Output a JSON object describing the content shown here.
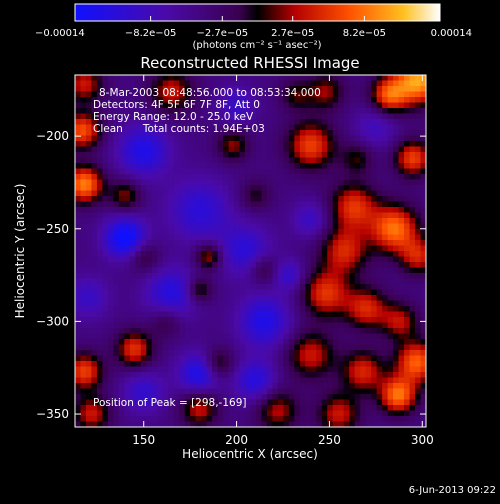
{
  "chart_data": {
    "type": "heatmap",
    "title": "Reconstructed RHESSI Image",
    "xlabel": "Heliocentric X (arcsec)",
    "ylabel": "Heliocentric Y (arcsec)",
    "xlim": [
      113,
      302
    ],
    "ylim": [
      -357,
      -167
    ],
    "x_ticks": [
      150,
      200,
      250,
      300
    ],
    "y_ticks": [
      -350,
      -300,
      -250,
      -200
    ],
    "x_tick_labels": [
      "150",
      "200",
      "250",
      "300"
    ],
    "y_tick_labels": [
      "−350",
      "−300",
      "−250",
      "−200"
    ],
    "colorbar": {
      "range": [
        -0.00014,
        0.00014
      ],
      "tick_values": [
        -0.00014,
        -8.2e-05,
        -2.7e-05,
        2.7e-05,
        8.2e-05,
        0.00014
      ],
      "tick_labels": [
        "−0.00014",
        "−8.2e−05",
        "−2.7e−05",
        "2.7e−05",
        "8.2e−05",
        "0.00014"
      ],
      "unit_label": "(photons cm⁻² s⁻¹ asec⁻²)"
    },
    "annotations": {
      "time_range": "8-Mar-2003 08:48:56.000 to 08:53:34.000",
      "detectors": "Detectors: 4F 5F 6F 7F 8F, Att 0",
      "energy_range": "Energy Range: 12.0 - 25.0 keV",
      "clean": "Clean      Total counts: 1.94E+03",
      "peak": "Position of Peak = [298,-169]"
    },
    "peak": {
      "x": 298,
      "y": -169
    },
    "blobs": [
      {
        "x": 298,
        "y": -170,
        "a": 1.0,
        "s": 9
      },
      {
        "x": 282,
        "y": -178,
        "a": 0.75,
        "s": 7
      },
      {
        "x": 248,
        "y": -176,
        "a": 0.45,
        "s": 7
      },
      {
        "x": 232,
        "y": -178,
        "a": 0.35,
        "s": 6
      },
      {
        "x": 165,
        "y": -176,
        "a": 0.55,
        "s": 8
      },
      {
        "x": 118,
        "y": -172,
        "a": 0.55,
        "s": 7
      },
      {
        "x": 117,
        "y": -197,
        "a": 0.75,
        "s": 7
      },
      {
        "x": 118,
        "y": -226,
        "a": 0.9,
        "s": 7
      },
      {
        "x": 140,
        "y": -232,
        "a": 0.45,
        "s": 6
      },
      {
        "x": 198,
        "y": -205,
        "a": 0.45,
        "s": 6
      },
      {
        "x": 210,
        "y": -232,
        "a": 0.3,
        "s": 6
      },
      {
        "x": 240,
        "y": -205,
        "a": 0.7,
        "s": 9
      },
      {
        "x": 265,
        "y": -212,
        "a": 0.35,
        "s": 6
      },
      {
        "x": 295,
        "y": -212,
        "a": 0.7,
        "s": 7
      },
      {
        "x": 263,
        "y": -238,
        "a": 0.65,
        "s": 9
      },
      {
        "x": 285,
        "y": -250,
        "a": 0.85,
        "s": 9
      },
      {
        "x": 298,
        "y": -265,
        "a": 0.55,
        "s": 7
      },
      {
        "x": 258,
        "y": -262,
        "a": 0.6,
        "s": 9
      },
      {
        "x": 248,
        "y": -285,
        "a": 0.65,
        "s": 9
      },
      {
        "x": 270,
        "y": -293,
        "a": 0.6,
        "s": 8
      },
      {
        "x": 288,
        "y": -300,
        "a": 0.5,
        "s": 7
      },
      {
        "x": 297,
        "y": -322,
        "a": 0.8,
        "s": 8
      },
      {
        "x": 240,
        "y": -318,
        "a": 0.55,
        "s": 9
      },
      {
        "x": 268,
        "y": -327,
        "a": 0.6,
        "s": 8
      },
      {
        "x": 287,
        "y": -340,
        "a": 0.85,
        "s": 7
      },
      {
        "x": 255,
        "y": -350,
        "a": 0.55,
        "s": 8
      },
      {
        "x": 222,
        "y": -348,
        "a": 0.5,
        "s": 8
      },
      {
        "x": 190,
        "y": -323,
        "a": 0.45,
        "s": 6
      },
      {
        "x": 180,
        "y": -347,
        "a": 0.55,
        "s": 7
      },
      {
        "x": 145,
        "y": -315,
        "a": 0.65,
        "s": 7
      },
      {
        "x": 118,
        "y": -327,
        "a": 0.7,
        "s": 7
      },
      {
        "x": 122,
        "y": -350,
        "a": 0.55,
        "s": 7
      },
      {
        "x": 150,
        "y": -265,
        "a": 0.35,
        "s": 6
      },
      {
        "x": 185,
        "y": -265,
        "a": 0.55,
        "s": 5
      },
      {
        "x": 180,
        "y": -283,
        "a": 0.45,
        "s": 5
      },
      {
        "x": 215,
        "y": -272,
        "a": 0.35,
        "s": 6
      },
      {
        "x": 162,
        "y": -300,
        "a": 0.3,
        "s": 6
      },
      {
        "x": 150,
        "y": -208,
        "a": -0.55,
        "s": 10
      },
      {
        "x": 180,
        "y": -240,
        "a": -0.45,
        "s": 12
      },
      {
        "x": 140,
        "y": -255,
        "a": -0.75,
        "s": 8
      },
      {
        "x": 165,
        "y": -285,
        "a": -0.5,
        "s": 10
      },
      {
        "x": 205,
        "y": -262,
        "a": -0.45,
        "s": 10
      },
      {
        "x": 215,
        "y": -300,
        "a": -0.55,
        "s": 10
      },
      {
        "x": 180,
        "y": -328,
        "a": -0.6,
        "s": 8
      },
      {
        "x": 210,
        "y": -332,
        "a": -0.5,
        "s": 8
      },
      {
        "x": 150,
        "y": -338,
        "a": -0.4,
        "s": 8
      },
      {
        "x": 120,
        "y": -287,
        "a": -0.35,
        "s": 8
      },
      {
        "x": 240,
        "y": -245,
        "a": -0.35,
        "s": 7
      },
      {
        "x": 275,
        "y": -195,
        "a": -0.3,
        "s": 8
      },
      {
        "x": 200,
        "y": -183,
        "a": -0.35,
        "s": 7
      },
      {
        "x": 228,
        "y": -275,
        "a": -0.4,
        "s": 6
      }
    ]
  },
  "footer": {
    "date": "6-Jun-2013 09:22"
  }
}
